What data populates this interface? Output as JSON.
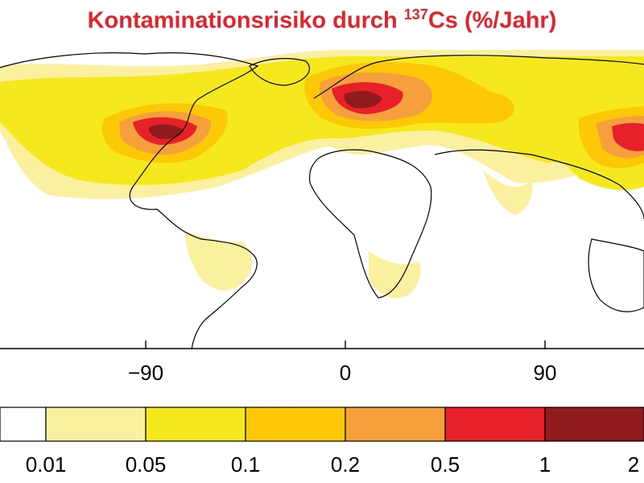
{
  "title": {
    "prefix": "Kontaminationsrisiko durch ",
    "isotope_mass": "137",
    "suffix": "Cs (%/Jahr)"
  },
  "map": {
    "x_ticks": [
      "−90",
      "0",
      "90"
    ],
    "colors": {
      "ocean": "#ffffff",
      "level1": "#fbf0a0",
      "level2": "#f5e81c",
      "level3": "#fdc806",
      "level4": "#f5a03c",
      "level5": "#e8202a",
      "level6": "#901a1c",
      "border": "#000000",
      "title": "#e3232b"
    }
  },
  "legend": {
    "colors": [
      "#ffffff",
      "#fbf0a0",
      "#f5e81c",
      "#fdc806",
      "#f5a03c",
      "#e8202a",
      "#901a1c"
    ],
    "labels": [
      "0.01",
      "0.05",
      "0.1",
      "0.2",
      "0.5",
      "1",
      "2"
    ]
  }
}
